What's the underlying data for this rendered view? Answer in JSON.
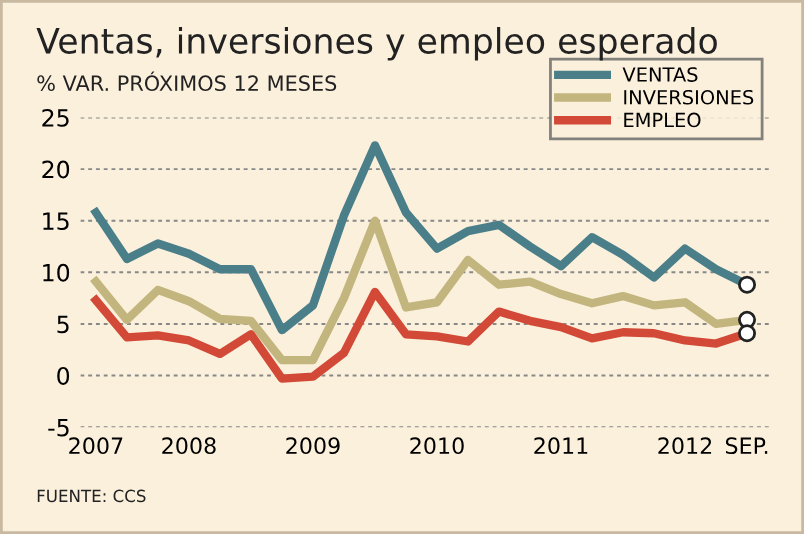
{
  "chart_data": {
    "type": "line",
    "title": "Ventas, inversiones y empleo esperado",
    "subtitle": "% VAR. PRÓXIMOS 12 MESES",
    "categories": [
      "2007",
      null,
      null,
      "2008",
      null,
      null,
      null,
      "2009",
      null,
      null,
      null,
      "2010",
      null,
      null,
      null,
      "2011",
      null,
      null,
      null,
      "2012",
      null,
      "SEP."
    ],
    "series": [
      {
        "name": "VENTAS",
        "color": "#4a7f8a",
        "values": [
          15.8,
          11.3,
          12.8,
          11.8,
          10.3,
          10.3,
          4.4,
          6.8,
          15.5,
          22.3,
          15.8,
          12.3,
          14.0,
          14.6,
          12.5,
          10.6,
          13.4,
          11.7,
          9.5,
          12.3,
          10.3,
          8.8
        ]
      },
      {
        "name": "INVERSIONES",
        "color": "#c2b57e",
        "values": [
          9.1,
          5.4,
          8.3,
          7.2,
          5.5,
          5.3,
          1.5,
          1.5,
          7.5,
          15.0,
          6.6,
          7.1,
          11.2,
          8.8,
          9.1,
          7.9,
          7.0,
          7.7,
          6.8,
          7.1,
          5.0,
          5.4
        ]
      },
      {
        "name": "EMPLEO",
        "color": "#d24a37",
        "values": [
          7.3,
          3.7,
          3.9,
          3.4,
          2.1,
          4.0,
          -0.3,
          -0.1,
          2.2,
          8.1,
          4.0,
          3.8,
          3.3,
          6.2,
          5.3,
          4.7,
          3.6,
          4.2,
          4.1,
          3.4,
          3.1,
          4.1
        ]
      },
      {
        "type": "scatter",
        "color": "#ffffff",
        "values": [
          null,
          null,
          null,
          null,
          null,
          null,
          null,
          null,
          null,
          null,
          null,
          null,
          null,
          null,
          null,
          null,
          null,
          null,
          null,
          null,
          null,
          8.8
        ]
      },
      {
        "type": "scatter",
        "color": "#ffffff",
        "values": [
          null,
          null,
          null,
          null,
          null,
          null,
          null,
          null,
          null,
          null,
          null,
          null,
          null,
          null,
          null,
          null,
          null,
          null,
          null,
          null,
          null,
          5.4
        ]
      },
      {
        "type": "scatter",
        "color": "#ffffff",
        "values": [
          null,
          null,
          null,
          null,
          null,
          null,
          null,
          null,
          null,
          null,
          null,
          null,
          null,
          null,
          null,
          null,
          null,
          null,
          null,
          null,
          null,
          4.1
        ]
      }
    ],
    "ylim": [
      -5,
      25
    ],
    "yticks": [
      -5,
      0,
      5,
      10,
      15,
      20,
      25
    ],
    "grid": "y",
    "legend": "top right",
    "annotations": [
      "FUENTE: CCS"
    ]
  }
}
